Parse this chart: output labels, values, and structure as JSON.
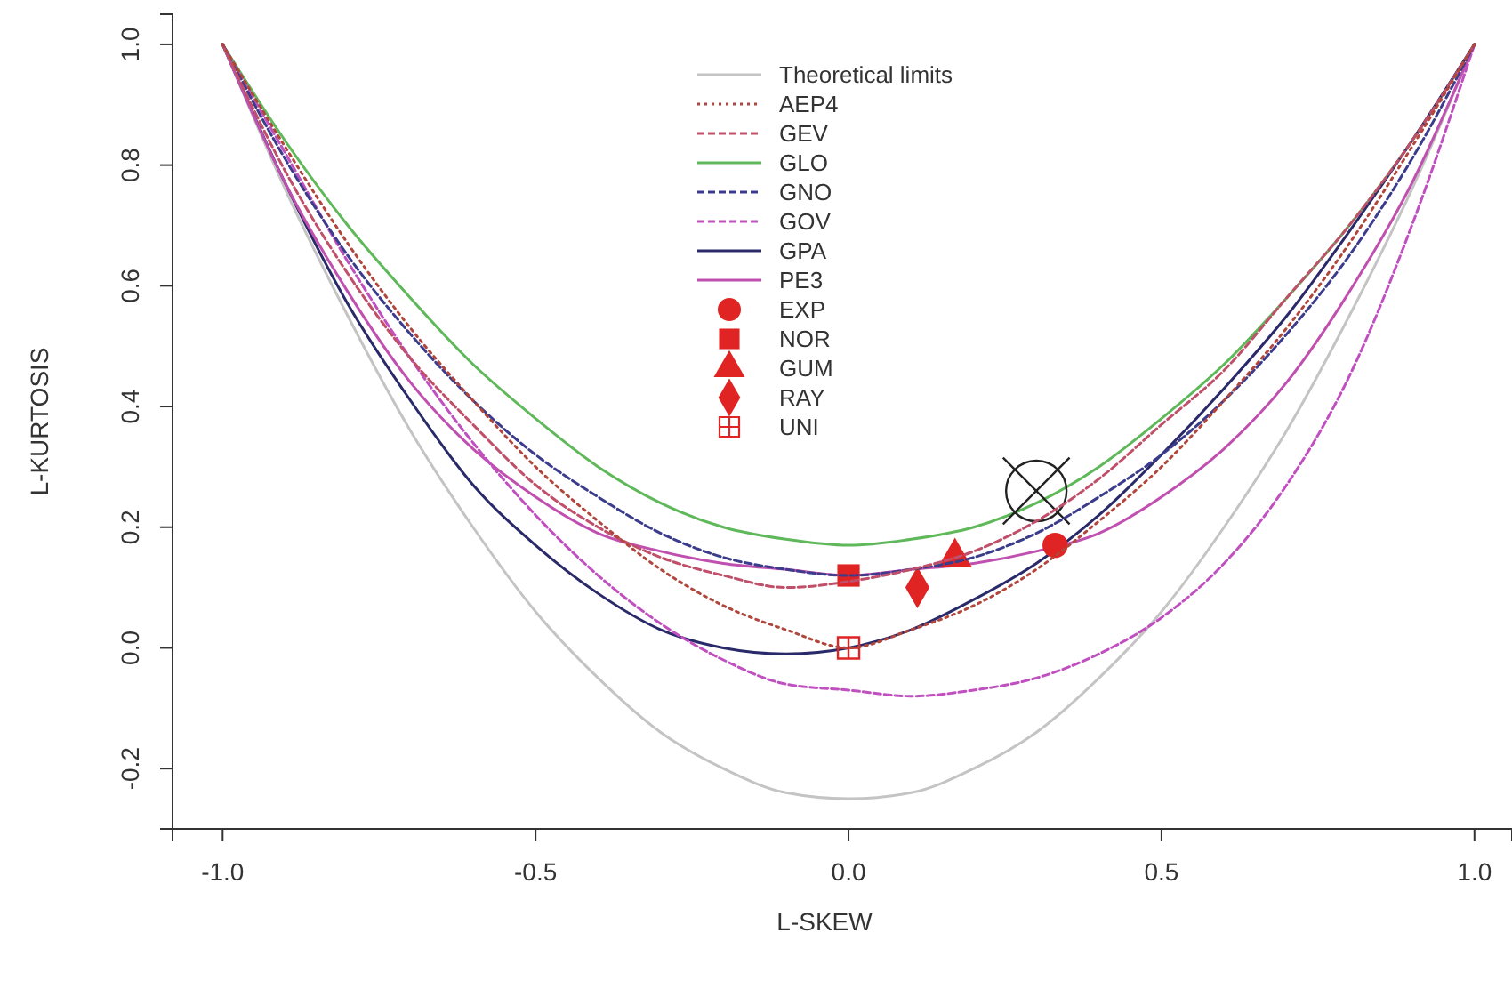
{
  "chart_data": {
    "type": "line",
    "xlabel": "L-SKEW",
    "ylabel": "L-KURTOSIS",
    "xlim": [
      -1.08,
      1.06
    ],
    "ylim": [
      -0.3,
      1.05
    ],
    "xticks": [
      {
        "value": -1,
        "label": "-1.0"
      },
      -0.5,
      {
        "value": 0,
        "label": "0.0"
      },
      0.5,
      {
        "value": 1,
        "label": "1.0"
      }
    ],
    "yticks": [
      -0.2,
      {
        "value": 0,
        "label": "0.0"
      },
      0.2,
      0.4,
      0.6,
      0.8,
      {
        "value": 1,
        "label": "1.0"
      }
    ],
    "grid": false,
    "legend": "top",
    "x": [
      -1,
      -0.9,
      -0.8,
      -0.7,
      -0.6,
      -0.5,
      -0.4,
      -0.3,
      -0.2,
      -0.1,
      0,
      0.1,
      0.2,
      0.3,
      0.4,
      0.5,
      0.6,
      0.7,
      0.8,
      0.9,
      1
    ],
    "series": [
      {
        "name": "Theoretical limits",
        "color": "#c4c4c4",
        "line_style": "solid",
        "marker": "none",
        "values": [
          1,
          0.76,
          0.55,
          0.36,
          0.2,
          0.06,
          -0.05,
          -0.14,
          -0.2,
          -0.24,
          -0.25,
          -0.24,
          -0.2,
          -0.14,
          -0.05,
          0.06,
          0.2,
          0.36,
          0.55,
          0.76,
          1
        ]
      },
      {
        "name": "AEP4",
        "color": "#b0463c",
        "line_style": "dotted",
        "marker": "none",
        "values": [
          1,
          0.83,
          0.67,
          0.53,
          0.41,
          0.3,
          0.21,
          0.13,
          0.07,
          0.03,
          0,
          0.03,
          0.07,
          0.13,
          0.21,
          0.3,
          0.41,
          0.53,
          0.67,
          0.83,
          1
        ]
      },
      {
        "name": "GEV",
        "color": "#c0506a",
        "line_style": "dashed",
        "marker": "none",
        "values": [
          1,
          0.79,
          0.62,
          0.48,
          0.37,
          0.27,
          0.2,
          0.15,
          0.12,
          0.1,
          0.11,
          0.13,
          0.16,
          0.21,
          0.28,
          0.37,
          0.46,
          0.58,
          0.7,
          0.84,
          1
        ]
      },
      {
        "name": "GLO",
        "color": "#5fb85a",
        "line_style": "solid",
        "marker": "none",
        "values": [
          1,
          0.84,
          0.7,
          0.58,
          0.47,
          0.38,
          0.3,
          0.24,
          0.2,
          0.18,
          0.17,
          0.18,
          0.2,
          0.24,
          0.3,
          0.38,
          0.47,
          0.58,
          0.7,
          0.84,
          1
        ]
      },
      {
        "name": "GNO",
        "color": "#3c3c8c",
        "line_style": "dashed",
        "marker": "none",
        "values": [
          1,
          0.81,
          0.65,
          0.52,
          0.41,
          0.32,
          0.25,
          0.19,
          0.15,
          0.13,
          0.12,
          0.13,
          0.15,
          0.19,
          0.25,
          0.32,
          0.41,
          0.52,
          0.65,
          0.81,
          1
        ]
      },
      {
        "name": "GOV",
        "color": "#c050c0",
        "line_style": "dashed",
        "marker": "none",
        "values": [
          1,
          0.82,
          0.64,
          0.48,
          0.34,
          0.22,
          0.12,
          0.04,
          -0.02,
          -0.06,
          -0.07,
          -0.08,
          -0.07,
          -0.05,
          -0.01,
          0.05,
          0.14,
          0.27,
          0.45,
          0.7,
          1
        ]
      },
      {
        "name": "GPA",
        "color": "#2a2a6a",
        "line_style": "solid",
        "marker": "none",
        "values": [
          1,
          0.77,
          0.57,
          0.41,
          0.27,
          0.17,
          0.09,
          0.03,
          0,
          -0.01,
          0,
          0.03,
          0.08,
          0.14,
          0.22,
          0.32,
          0.43,
          0.55,
          0.69,
          0.84,
          1
        ]
      },
      {
        "name": "PE3",
        "color": "#c050b0",
        "line_style": "solid",
        "marker": "none",
        "values": [
          1,
          0.77,
          0.59,
          0.44,
          0.33,
          0.25,
          0.19,
          0.16,
          0.14,
          0.13,
          0.12,
          0.13,
          0.14,
          0.16,
          0.19,
          0.25,
          0.33,
          0.44,
          0.59,
          0.77,
          1
        ]
      },
      {
        "name": "EXP",
        "type": "scatter",
        "color": "#e02424",
        "marker": "circle",
        "x": [
          0.33
        ],
        "values": [
          0.17
        ]
      },
      {
        "name": "NOR",
        "type": "scatter",
        "color": "#e02424",
        "marker": "square",
        "x": [
          0
        ],
        "values": [
          0.12
        ]
      },
      {
        "name": "GUM",
        "type": "scatter",
        "color": "#e02424",
        "marker": "triangle",
        "x": [
          0.17
        ],
        "values": [
          0.15
        ]
      },
      {
        "name": "RAY",
        "type": "scatter",
        "color": "#e02424",
        "marker": "diamond",
        "x": [
          0.11
        ],
        "values": [
          0.1
        ]
      },
      {
        "name": "UNI",
        "type": "scatter",
        "color": "#e02424",
        "marker": "cross",
        "x": [
          0
        ],
        "values": [
          0
        ]
      },
      {
        "type": "scatter",
        "color": "#222222",
        "marker": "circlecross",
        "x": [
          0.3
        ],
        "values": [
          0.26
        ]
      }
    ]
  }
}
